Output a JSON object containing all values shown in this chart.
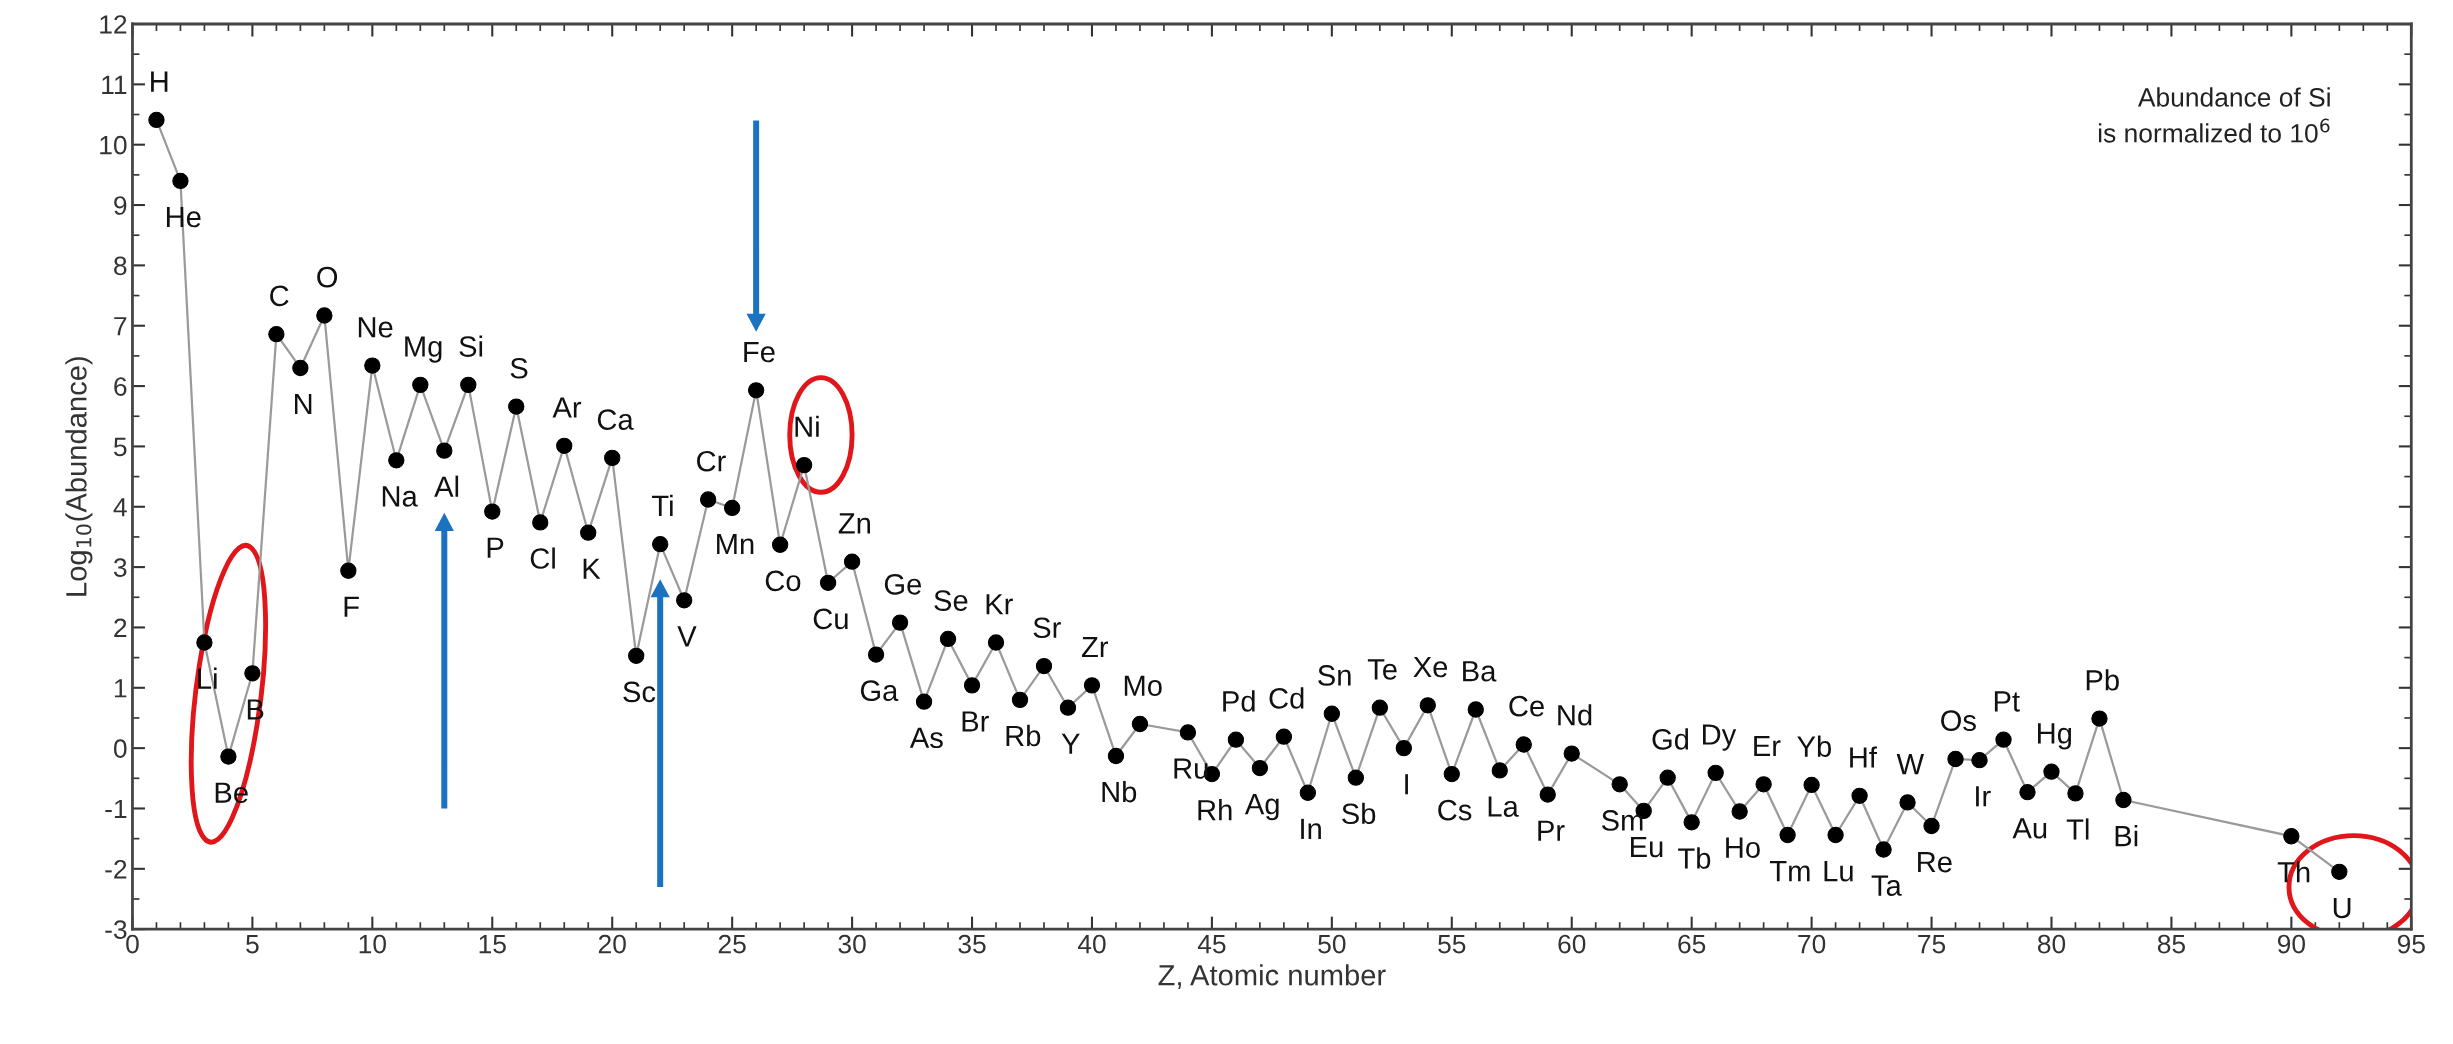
{
  "chart_data": {
    "type": "line",
    "xlabel": "Z, Atomic number",
    "ylabel": "Log$_{10}$(Abundance)",
    "xlim": [
      0,
      95
    ],
    "xticks": [
      0,
      5,
      10,
      15,
      20,
      25,
      30,
      35,
      40,
      45,
      50,
      55,
      60,
      65,
      70,
      75,
      80,
      85,
      90,
      95
    ],
    "ylim": [
      -3,
      12
    ],
    "yticks": [
      -3,
      -2,
      -1,
      0,
      1,
      2,
      3,
      4,
      5,
      6,
      7,
      8,
      9,
      10,
      11,
      12
    ],
    "grid": false,
    "marker": "circle",
    "line_style": "solid",
    "series": [
      {
        "color": "#000000",
        "x": [
          1,
          2,
          3,
          4,
          5,
          6,
          7,
          8,
          9,
          10,
          11,
          12,
          13,
          14,
          15,
          16,
          17,
          18,
          19,
          20,
          21,
          22,
          23,
          24,
          25,
          26,
          27,
          28,
          29,
          30,
          31,
          32,
          33,
          34,
          35,
          36,
          37,
          38,
          39,
          40,
          41,
          42,
          44,
          45,
          46,
          47,
          48,
          49,
          50,
          51,
          52,
          53,
          54,
          55,
          56,
          57,
          58,
          59,
          60,
          62,
          63,
          64,
          65,
          66,
          67,
          68,
          69,
          70,
          71,
          72,
          73,
          74,
          75,
          76,
          77,
          78,
          79,
          80,
          81,
          82,
          83,
          90,
          92
        ],
        "values": [
          10.41,
          9.4,
          1.75,
          -0.14,
          1.24,
          6.86,
          6.3,
          7.17,
          2.94,
          6.34,
          4.77,
          6.02,
          4.93,
          6.02,
          3.92,
          5.66,
          3.74,
          5.01,
          3.57,
          4.81,
          1.53,
          3.38,
          2.45,
          4.12,
          3.98,
          5.93,
          3.37,
          4.69,
          2.74,
          3.09,
          1.55,
          2.08,
          0.77,
          1.81,
          1.04,
          1.75,
          0.8,
          1.36,
          0.67,
          1.04,
          -0.13,
          0.4,
          0.26,
          -0.43,
          0.14,
          -0.33,
          0.19,
          -0.74,
          0.57,
          -0.49,
          0.67,
          0.0,
          0.71,
          -0.43,
          0.64,
          -0.37,
          0.06,
          -0.77,
          -0.09,
          -0.6,
          -1.04,
          -0.49,
          -1.23,
          -0.41,
          -1.05,
          -0.6,
          -1.44,
          -0.61,
          -1.44,
          -0.79,
          -1.68,
          -0.9,
          -1.29,
          -0.18,
          -0.2,
          0.14,
          -0.73,
          -0.39,
          -0.75,
          0.49,
          -0.86,
          -1.46,
          -2.05
        ]
      }
    ],
    "annotations": [
      {
        "text": "H",
        "x": 1,
        "y": 10.41
      },
      {
        "text": "He",
        "x": 2,
        "y": 9.4
      },
      {
        "text": "Li",
        "x": 3,
        "y": 1.75
      },
      {
        "text": "Be",
        "x": 4,
        "y": -0.14
      },
      {
        "text": "B",
        "x": 5,
        "y": 1.24
      },
      {
        "text": "C",
        "x": 6,
        "y": 6.86
      },
      {
        "text": "N",
        "x": 7,
        "y": 6.3
      },
      {
        "text": "O",
        "x": 8,
        "y": 7.17
      },
      {
        "text": "F",
        "x": 9,
        "y": 2.94
      },
      {
        "text": "Ne",
        "x": 10,
        "y": 6.34
      },
      {
        "text": "Na",
        "x": 11,
        "y": 4.77
      },
      {
        "text": "Mg",
        "x": 12,
        "y": 6.02
      },
      {
        "text": "Al",
        "x": 13,
        "y": 4.93
      },
      {
        "text": "Si",
        "x": 14,
        "y": 6.02
      },
      {
        "text": "P",
        "x": 15,
        "y": 3.92
      },
      {
        "text": "S",
        "x": 16,
        "y": 5.66
      },
      {
        "text": "Cl",
        "x": 17,
        "y": 3.74
      },
      {
        "text": "Ar",
        "x": 18,
        "y": 5.01
      },
      {
        "text": "K",
        "x": 19,
        "y": 3.57
      },
      {
        "text": "Ca",
        "x": 20,
        "y": 4.81
      },
      {
        "text": "Sc",
        "x": 21,
        "y": 1.53
      },
      {
        "text": "Ti",
        "x": 22,
        "y": 3.38
      },
      {
        "text": "V",
        "x": 23,
        "y": 2.45
      },
      {
        "text": "Cr",
        "x": 24,
        "y": 4.12
      },
      {
        "text": "Mn",
        "x": 25,
        "y": 3.98
      },
      {
        "text": "Fe",
        "x": 26,
        "y": 5.93
      },
      {
        "text": "Co",
        "x": 27,
        "y": 3.37
      },
      {
        "text": "Ni",
        "x": 28,
        "y": 4.69
      },
      {
        "text": "Cu",
        "x": 29,
        "y": 2.74
      },
      {
        "text": "Zn",
        "x": 30,
        "y": 3.09
      },
      {
        "text": "Ga",
        "x": 31,
        "y": 1.55
      },
      {
        "text": "Ge",
        "x": 32,
        "y": 2.08
      },
      {
        "text": "As",
        "x": 33,
        "y": 0.77
      },
      {
        "text": "Se",
        "x": 34,
        "y": 1.81
      },
      {
        "text": "Br",
        "x": 35,
        "y": 1.04
      },
      {
        "text": "Kr",
        "x": 36,
        "y": 1.75
      },
      {
        "text": "Rb",
        "x": 37,
        "y": 0.8
      },
      {
        "text": "Sr",
        "x": 38,
        "y": 1.36
      },
      {
        "text": "Y",
        "x": 39,
        "y": 0.67
      },
      {
        "text": "Zr",
        "x": 40,
        "y": 1.04
      },
      {
        "text": "Nb",
        "x": 41,
        "y": -0.13
      },
      {
        "text": "Mo",
        "x": 42,
        "y": 0.4
      },
      {
        "text": "Ru",
        "x": 44,
        "y": 0.26
      },
      {
        "text": "Rh",
        "x": 45,
        "y": -0.43
      },
      {
        "text": "Pd",
        "x": 46,
        "y": 0.14
      },
      {
        "text": "Ag",
        "x": 47,
        "y": -0.33
      },
      {
        "text": "Cd",
        "x": 48,
        "y": 0.19
      },
      {
        "text": "In",
        "x": 49,
        "y": -0.74
      },
      {
        "text": "Sn",
        "x": 50,
        "y": 0.57
      },
      {
        "text": "Sb",
        "x": 51,
        "y": -0.49
      },
      {
        "text": "Te",
        "x": 52,
        "y": 0.67
      },
      {
        "text": "I",
        "x": 53,
        "y": 0.0
      },
      {
        "text": "Xe",
        "x": 54,
        "y": 0.71
      },
      {
        "text": "Cs",
        "x": 55,
        "y": -0.43
      },
      {
        "text": "Ba",
        "x": 56,
        "y": 0.64
      },
      {
        "text": "La",
        "x": 57,
        "y": -0.37
      },
      {
        "text": "Ce",
        "x": 58,
        "y": 0.06
      },
      {
        "text": "Pr",
        "x": 59,
        "y": -0.77
      },
      {
        "text": "Nd",
        "x": 60,
        "y": -0.09
      },
      {
        "text": "Sm",
        "x": 62,
        "y": -0.6
      },
      {
        "text": "Eu",
        "x": 63,
        "y": -1.04
      },
      {
        "text": "Gd",
        "x": 64,
        "y": -0.49
      },
      {
        "text": "Tb",
        "x": 65,
        "y": -1.23
      },
      {
        "text": "Dy",
        "x": 66,
        "y": -0.41
      },
      {
        "text": "Ho",
        "x": 67,
        "y": -1.05
      },
      {
        "text": "Er",
        "x": 68,
        "y": -0.6
      },
      {
        "text": "Tm",
        "x": 69,
        "y": -1.44
      },
      {
        "text": "Yb",
        "x": 70,
        "y": -0.61
      },
      {
        "text": "Lu",
        "x": 71,
        "y": -1.44
      },
      {
        "text": "Hf",
        "x": 72,
        "y": -0.79
      },
      {
        "text": "Ta",
        "x": 73,
        "y": -1.68
      },
      {
        "text": "W",
        "x": 74,
        "y": -0.9
      },
      {
        "text": "Re",
        "x": 75,
        "y": -1.29
      },
      {
        "text": "Os",
        "x": 76,
        "y": -0.18
      },
      {
        "text": "Ir",
        "x": 77,
        "y": -0.2
      },
      {
        "text": "Pt",
        "x": 78,
        "y": 0.14
      },
      {
        "text": "Au",
        "x": 79,
        "y": -0.73
      },
      {
        "text": "Hg",
        "x": 80,
        "y": -0.39
      },
      {
        "text": "Tl",
        "x": 81,
        "y": -0.75
      },
      {
        "text": "Pb",
        "x": 82,
        "y": 0.49
      },
      {
        "text": "Bi",
        "x": 83,
        "y": -0.86
      },
      {
        "text": "Th",
        "x": 90,
        "y": -1.46
      },
      {
        "text": "U",
        "x": 92,
        "y": -2.05
      },
      "Abundance of Si\nis normalized to 10$^{6}$"
    ]
  }
}
